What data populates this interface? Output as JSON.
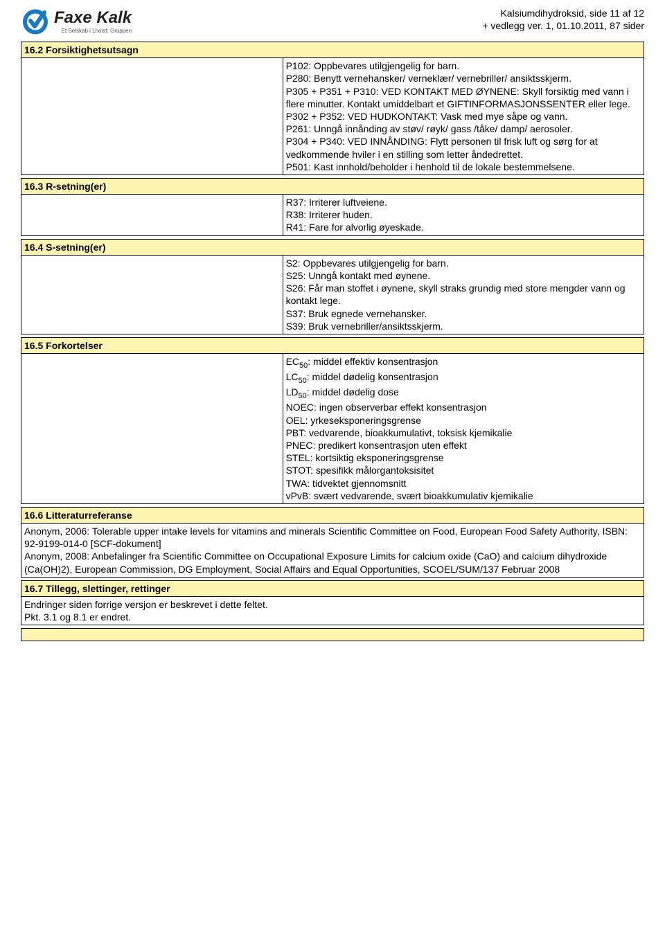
{
  "logo": {
    "main": "Faxe Kalk",
    "sub": "Et Selskab i Lhoist: Gruppen",
    "color_primary": "#1b78c2"
  },
  "page_meta": {
    "line1": "Kalsiumdihydroksid, side 11 af 12",
    "line2": "+ vedlegg ver. 1, 01.10.2011, 87 sider"
  },
  "sections": {
    "s16_2": {
      "header": "16.2 Forsiktighetsutsagn",
      "body": "P102: Oppbevares utilgjengelig for barn.\nP280: Benytt vernehansker/ verneklær/ vernebriller/ ansiktsskjerm.\nP305 + P351 + P310: VED KONTAKT MED ØYNENE: Skyll forsiktig med vann i flere minutter. Kontakt umiddelbart et GIFTINFORMASJONSSENTER eller lege.\nP302 + P352: VED HUDKONTAKT: Vask med mye såpe og vann.\nP261: Unngå innånding av støv/ røyk/ gass /tåke/ damp/ aerosoler.\nP304 + P340: VED INNÅNDING: Flytt personen til frisk luft og sørg for at vedkommende hviler i en stilling som letter åndedrettet.\nP501: Kast innhold/beholder i henhold til de lokale bestemmelsene."
    },
    "s16_3": {
      "header": "16.3 R-setning(er)",
      "body": "R37: Irriterer luftveiene.\nR38: Irriterer huden.\nR41: Fare for alvorlig øyeskade."
    },
    "s16_4": {
      "header": "16.4 S-setning(er)",
      "body": "S2: Oppbevares utilgjengelig for barn.\nS25: Unngå kontakt med øynene.\nS26: Får man stoffet i øynene, skyll straks grundig med store mengder vann og kontakt lege.\nS37: Bruk egnede vernehansker.\nS39: Bruk vernebriller/ansiktsskjerm."
    },
    "s16_5": {
      "header": "16.5 Forkortelser",
      "body_html": "EC<span class='sub'>50</span>: middel effektiv konsentrasjon\nLC<span class='sub'>50</span>: middel dødelig konsentrasjon\nLD<span class='sub'>50</span>: middel dødelig dose\nNOEC: ingen observerbar effekt konsentrasjon\nOEL: yrkeseksponeringsgrense\nPBT: vedvarende, bioakkumulativt, toksisk kjemikalie\nPNEC: predikert konsentrasjon uten effekt\nSTEL: kortsiktig eksponeringsgrense\nSTOT: spesifikk målorgantoksisitet\nTWA: tidvektet gjennomsnitt\nvPvB: svært vedvarende, svært bioakkumulativ kjemikalie"
    },
    "s16_6": {
      "header": "16.6 Litteraturreferanse",
      "body": "Anonym, 2006: Tolerable upper intake levels for vitamins and minerals Scientific Committee on Food, European Food Safety Authority, ISBN: 92-9199-014-0 [SCF-dokument]\nAnonym, 2008: Anbefalinger fra Scientific Committee on Occupational Exposure Limits for calcium oxide (CaO) and calcium dihydroxide (Ca(OH)2), European Commission, DG Employment, Social Affairs and Equal Opportunities, SCOEL/SUM/137 Februar 2008"
    },
    "s16_7": {
      "header": "16.7 Tillegg, slettinger, rettinger",
      "body": "Endringer siden forrige versjon er beskrevet i dette feltet.\nPkt. 3.1 og 8.1 er endret."
    }
  },
  "colors": {
    "header_bg": "#fff4b2",
    "border": "#000000",
    "background": "#ffffff"
  }
}
